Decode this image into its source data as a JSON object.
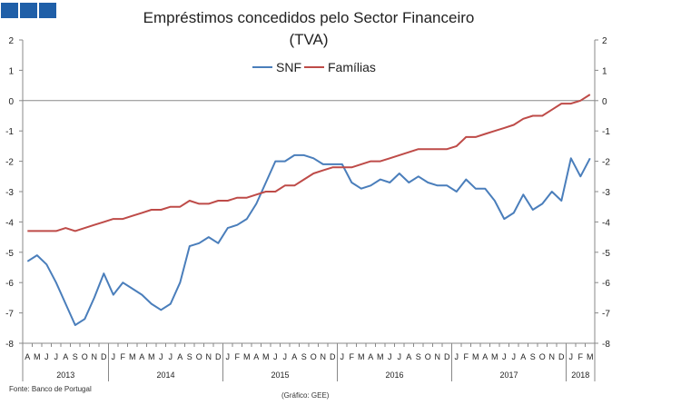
{
  "header": {
    "logo_color": "#1f5fa8"
  },
  "footer": {
    "source": "Fonte: Banco de Portugal",
    "credit": "(Gráfico: GEE)"
  },
  "chart_data": {
    "type": "line",
    "title_line1": "Empréstimos concedidos pelo Sector Financeiro",
    "title_line2": "(TVA)",
    "ylim": [
      -8,
      2
    ],
    "yticks": [
      2,
      1,
      0,
      -1,
      -2,
      -3,
      -4,
      -5,
      -6,
      -7,
      -8
    ],
    "month_labels": [
      "A",
      "M",
      "J",
      "J",
      "A",
      "S",
      "O",
      "N",
      "D",
      "J",
      "F",
      "M",
      "A",
      "M",
      "J",
      "J",
      "A",
      "S",
      "O",
      "N",
      "D",
      "J",
      "F",
      "M",
      "A",
      "M",
      "J",
      "J",
      "A",
      "S",
      "O",
      "N",
      "D",
      "J",
      "F",
      "M",
      "A",
      "M",
      "J",
      "J",
      "A",
      "S",
      "O",
      "N",
      "D",
      "J",
      "F",
      "M",
      "A",
      "M",
      "J",
      "J",
      "A",
      "S",
      "O",
      "N",
      "D",
      "J",
      "F",
      "M"
    ],
    "years": [
      {
        "label": "2013",
        "start": 0,
        "count": 9
      },
      {
        "label": "2014",
        "start": 9,
        "count": 12
      },
      {
        "label": "2015",
        "start": 21,
        "count": 12
      },
      {
        "label": "2016",
        "start": 33,
        "count": 12
      },
      {
        "label": "2017",
        "start": 45,
        "count": 12
      },
      {
        "label": "2018",
        "start": 57,
        "count": 3
      }
    ],
    "series": [
      {
        "name": "SNF",
        "color": "#4a7ebb",
        "values": [
          -5.3,
          -5.1,
          -5.4,
          -6.0,
          -6.7,
          -7.4,
          -7.2,
          -6.5,
          -5.7,
          -6.4,
          -6.0,
          -6.2,
          -6.4,
          -6.7,
          -6.9,
          -6.7,
          -6.0,
          -4.8,
          -4.7,
          -4.5,
          -4.7,
          -4.2,
          -4.1,
          -3.9,
          -3.4,
          -2.7,
          -2.0,
          -2.0,
          -1.8,
          -1.8,
          -1.9,
          -2.1,
          -2.1,
          -2.1,
          -2.7,
          -2.9,
          -2.8,
          -2.6,
          -2.7,
          -2.4,
          -2.7,
          -2.5,
          -2.7,
          -2.8,
          -2.8,
          -3.0,
          -2.6,
          -2.9,
          -2.9,
          -3.3,
          -3.9,
          -3.7,
          -3.1,
          -3.6,
          -3.4,
          -3.0,
          -3.3,
          -1.9,
          -2.5,
          -1.9
        ]
      },
      {
        "name": "Famílias",
        "color": "#be4b48",
        "values": [
          -4.3,
          -4.3,
          -4.3,
          -4.3,
          -4.2,
          -4.3,
          -4.2,
          -4.1,
          -4.0,
          -3.9,
          -3.9,
          -3.8,
          -3.7,
          -3.6,
          -3.6,
          -3.5,
          -3.5,
          -3.3,
          -3.4,
          -3.4,
          -3.3,
          -3.3,
          -3.2,
          -3.2,
          -3.1,
          -3.0,
          -3.0,
          -2.8,
          -2.8,
          -2.6,
          -2.4,
          -2.3,
          -2.2,
          -2.2,
          -2.2,
          -2.1,
          -2.0,
          -2.0,
          -1.9,
          -1.8,
          -1.7,
          -1.6,
          -1.6,
          -1.6,
          -1.6,
          -1.5,
          -1.2,
          -1.2,
          -1.1,
          -1.0,
          -0.9,
          -0.8,
          -0.6,
          -0.5,
          -0.5,
          -0.3,
          -0.1,
          -0.1,
          0.0,
          0.2
        ]
      }
    ],
    "legend_position": "top-center"
  }
}
